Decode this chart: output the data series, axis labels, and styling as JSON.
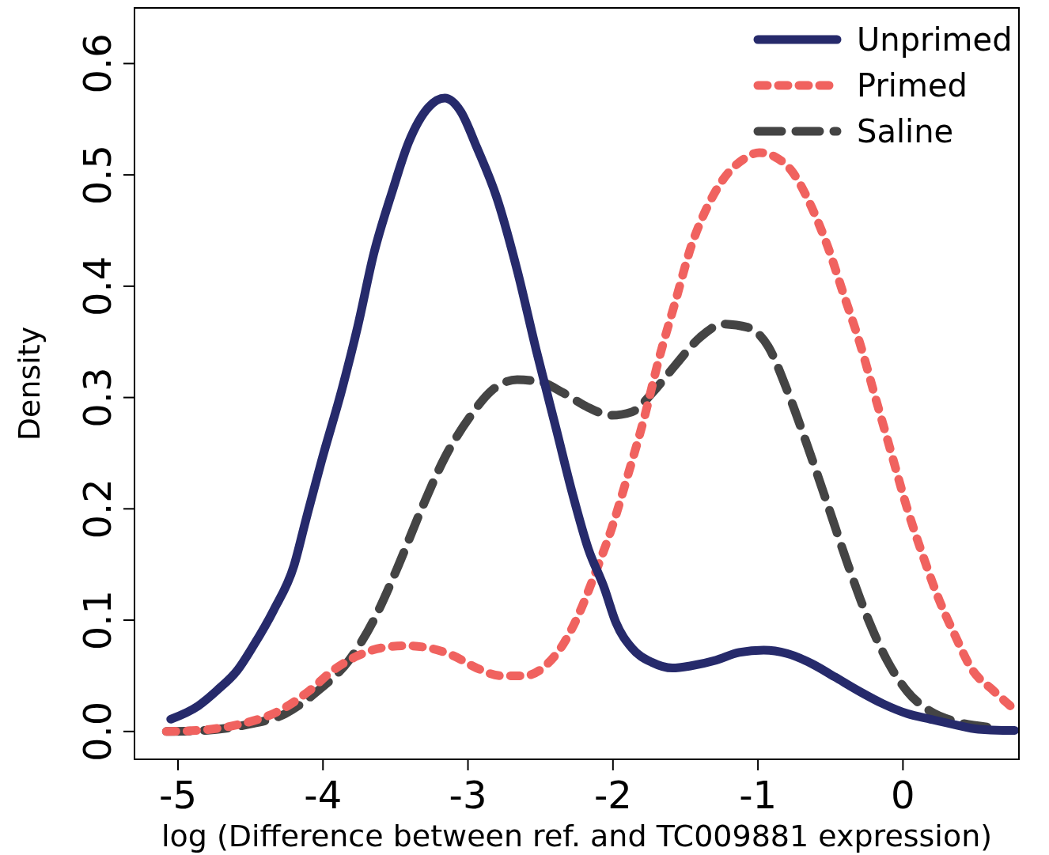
{
  "chart_data": {
    "type": "line",
    "xlabel": "log (Difference between ref. and TC009881 expression)",
    "ylabel": "Density",
    "xlim": [
      -5.3,
      0.8
    ],
    "ylim": [
      -0.025,
      0.65
    ],
    "xticks": [
      -5,
      -4,
      -3,
      -2,
      -1,
      0
    ],
    "yticks": [
      {
        "value": 0,
        "label": "0.0"
      },
      0.1,
      0.2,
      0.3,
      0.4,
      0.5,
      0.6
    ],
    "grid": false,
    "legend": "top right",
    "marker": "none",
    "series": [
      {
        "name": "Unprimed",
        "color": "#262a6b",
        "line_style": "solid",
        "x": [
          -5.05,
          -4.86,
          -4.73,
          -4.59,
          -4.48,
          -4.34,
          -4.2,
          -4.12,
          -4.01,
          -3.87,
          -3.76,
          -3.65,
          -3.52,
          -3.41,
          -3.27,
          -3.16,
          -3.05,
          -2.94,
          -2.8,
          -2.66,
          -2.53,
          -2.39,
          -2.28,
          -2.17,
          -2.06,
          -1.98,
          -1.87,
          -1.73,
          -1.59,
          -1.46,
          -1.29,
          -1.13,
          -0.96,
          -0.8,
          -0.63,
          -0.47,
          -0.3,
          -0.14,
          0.03,
          0.19,
          0.36,
          0.52,
          0.69,
          0.77
        ],
        "values": [
          0.011,
          0.023,
          0.037,
          0.055,
          0.077,
          0.109,
          0.149,
          0.189,
          0.243,
          0.307,
          0.364,
          0.429,
          0.486,
          0.529,
          0.561,
          0.569,
          0.557,
          0.525,
          0.479,
          0.414,
          0.343,
          0.271,
          0.214,
          0.164,
          0.129,
          0.098,
          0.075,
          0.062,
          0.057,
          0.059,
          0.064,
          0.071,
          0.073,
          0.07,
          0.061,
          0.049,
          0.036,
          0.025,
          0.016,
          0.011,
          0.006,
          0.002,
          0.001,
          0.001
        ]
      },
      {
        "name": "Primed",
        "color": "#f0625f",
        "line_style": "dotted",
        "x": [
          -5.08,
          -4.86,
          -4.59,
          -4.31,
          -4.09,
          -3.93,
          -3.76,
          -3.6,
          -3.43,
          -3.27,
          -3.1,
          -2.94,
          -2.77,
          -2.61,
          -2.45,
          -2.34,
          -2.23,
          -2.12,
          -2.01,
          -1.9,
          -1.79,
          -1.68,
          -1.57,
          -1.46,
          -1.35,
          -1.24,
          -1.1,
          -0.99,
          -0.88,
          -0.77,
          -0.63,
          -0.52,
          -0.41,
          -0.3,
          -0.19,
          -0.08,
          0.03,
          0.14,
          0.25,
          0.36,
          0.47,
          0.63,
          0.74
        ],
        "values": [
          0,
          0.001,
          0.006,
          0.018,
          0.037,
          0.055,
          0.068,
          0.075,
          0.077,
          0.075,
          0.068,
          0.057,
          0.05,
          0.05,
          0.061,
          0.079,
          0.107,
          0.143,
          0.182,
          0.229,
          0.279,
          0.336,
          0.386,
          0.436,
          0.471,
          0.496,
          0.514,
          0.52,
          0.516,
          0.504,
          0.471,
          0.436,
          0.393,
          0.35,
          0.3,
          0.25,
          0.2,
          0.157,
          0.118,
          0.086,
          0.057,
          0.036,
          0.023
        ]
      },
      {
        "name": "Saline",
        "color": "#444444",
        "line_style": "dashed",
        "x": [
          -5.08,
          -4.81,
          -4.53,
          -4.26,
          -4.04,
          -3.82,
          -3.65,
          -3.49,
          -3.32,
          -3.16,
          -2.99,
          -2.83,
          -2.66,
          -2.5,
          -2.34,
          -2.17,
          -2.01,
          -1.87,
          -1.73,
          -1.57,
          -1.4,
          -1.24,
          -1.07,
          -0.93,
          -0.8,
          -0.66,
          -0.52,
          -0.38,
          -0.25,
          -0.11,
          0.03,
          0.19,
          0.36,
          0.58
        ],
        "values": [
          0,
          0.001,
          0.006,
          0.016,
          0.036,
          0.064,
          0.1,
          0.146,
          0.2,
          0.246,
          0.282,
          0.307,
          0.316,
          0.314,
          0.304,
          0.291,
          0.284,
          0.287,
          0.304,
          0.329,
          0.354,
          0.366,
          0.363,
          0.346,
          0.307,
          0.257,
          0.204,
          0.15,
          0.104,
          0.064,
          0.036,
          0.018,
          0.009,
          0.004
        ]
      }
    ]
  }
}
